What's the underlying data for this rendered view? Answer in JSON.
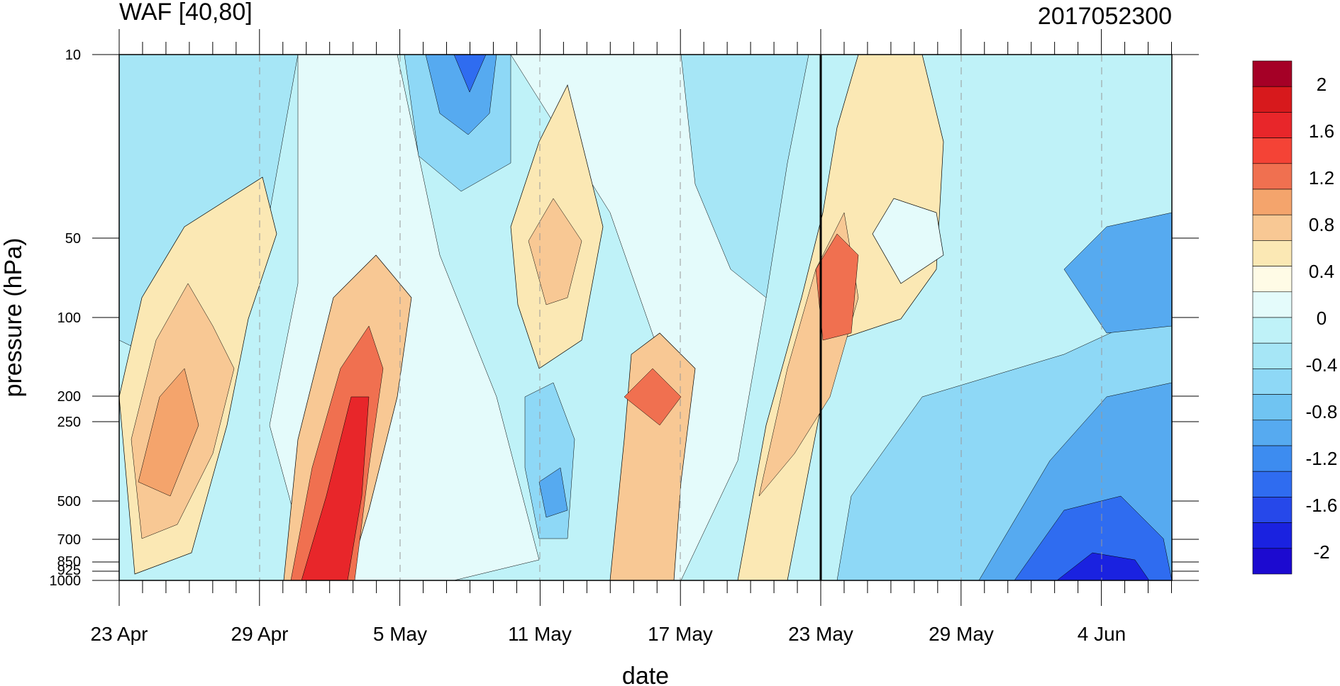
{
  "chart_data": {
    "type": "heatmap",
    "title_left": "WAF [40,80]",
    "title_right": "2017052300",
    "xlabel": "date",
    "ylabel": "pressure (hPa)",
    "x_tick_labels": [
      "23 Apr",
      "29 Apr",
      "5 May",
      "11 May",
      "17 May",
      "23 May",
      "29 May",
      "4 Jun"
    ],
    "y_tick_labels": [
      "10",
      "50",
      "100",
      "200",
      "250",
      "500",
      "700",
      "850",
      "925",
      "1000"
    ],
    "y_scale": "log",
    "colorbar_labels": [
      "2",
      "1.6",
      "1.2",
      "0.8",
      "0.4",
      "0",
      "-0.4",
      "-0.8",
      "-1.2",
      "-1.6",
      "-2"
    ],
    "colorbar_colors": [
      "#a50026",
      "#d7191c",
      "#e8262a",
      "#f44336",
      "#f07050",
      "#f4a46c",
      "#f8c894",
      "#fbe8b4",
      "#fffbe6",
      "#e4fbfb",
      "#bff2f8",
      "#a6e6f6",
      "#8ed8f6",
      "#70c4f2",
      "#56aaf0",
      "#3d8cf0",
      "#2f6cf0",
      "#2648ea",
      "#1a22e0",
      "#1c0ad0"
    ],
    "current_date_marker": "23 May"
  }
}
